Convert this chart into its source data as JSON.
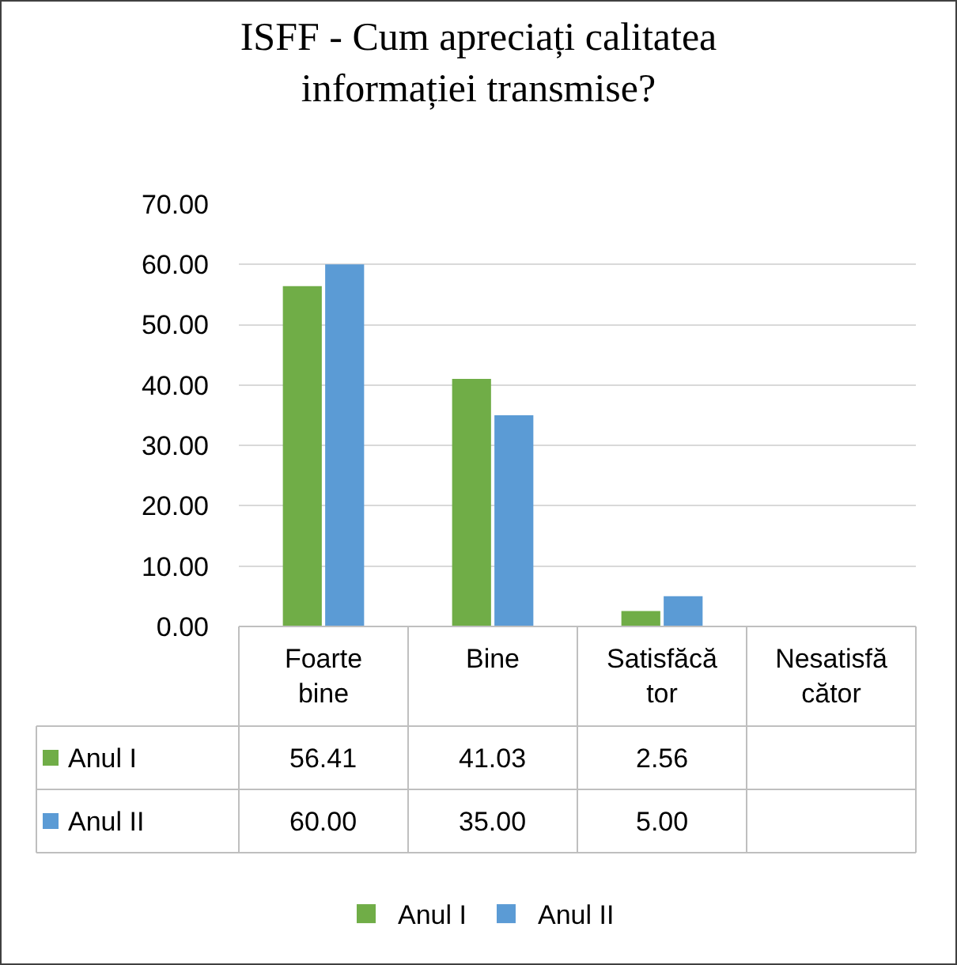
{
  "chart_data": {
    "type": "bar",
    "title": "ISFF - Cum apreciați calitatea informației transmise?",
    "categories": [
      "Foarte bine",
      "Bine",
      "Satisfăcător",
      "Nesatisfăcător"
    ],
    "series": [
      {
        "name": "Anul I",
        "color": "#70ad47",
        "values": [
          56.41,
          41.03,
          2.56,
          null
        ],
        "value_labels": [
          "56.41",
          "41.03",
          "2.56",
          null
        ]
      },
      {
        "name": "Anul II",
        "color": "#5b9bd5",
        "values": [
          60.0,
          35.0,
          5.0,
          null
        ],
        "value_labels": [
          "60.00",
          "35.00",
          "5.00",
          null
        ]
      }
    ],
    "ylim": [
      0,
      70
    ],
    "yticks": [
      {
        "value": 0,
        "label": "0.00"
      },
      {
        "value": 10,
        "label": "10.00"
      },
      {
        "value": 20,
        "label": "20.00"
      },
      {
        "value": 30,
        "label": "30.00"
      },
      {
        "value": 40,
        "label": "40.00"
      },
      {
        "value": 50,
        "label": "50.00"
      },
      {
        "value": 60,
        "label": "60.00"
      },
      {
        "value": 70,
        "label": "70.00"
      }
    ],
    "grid": "y",
    "legend": "bottom"
  }
}
